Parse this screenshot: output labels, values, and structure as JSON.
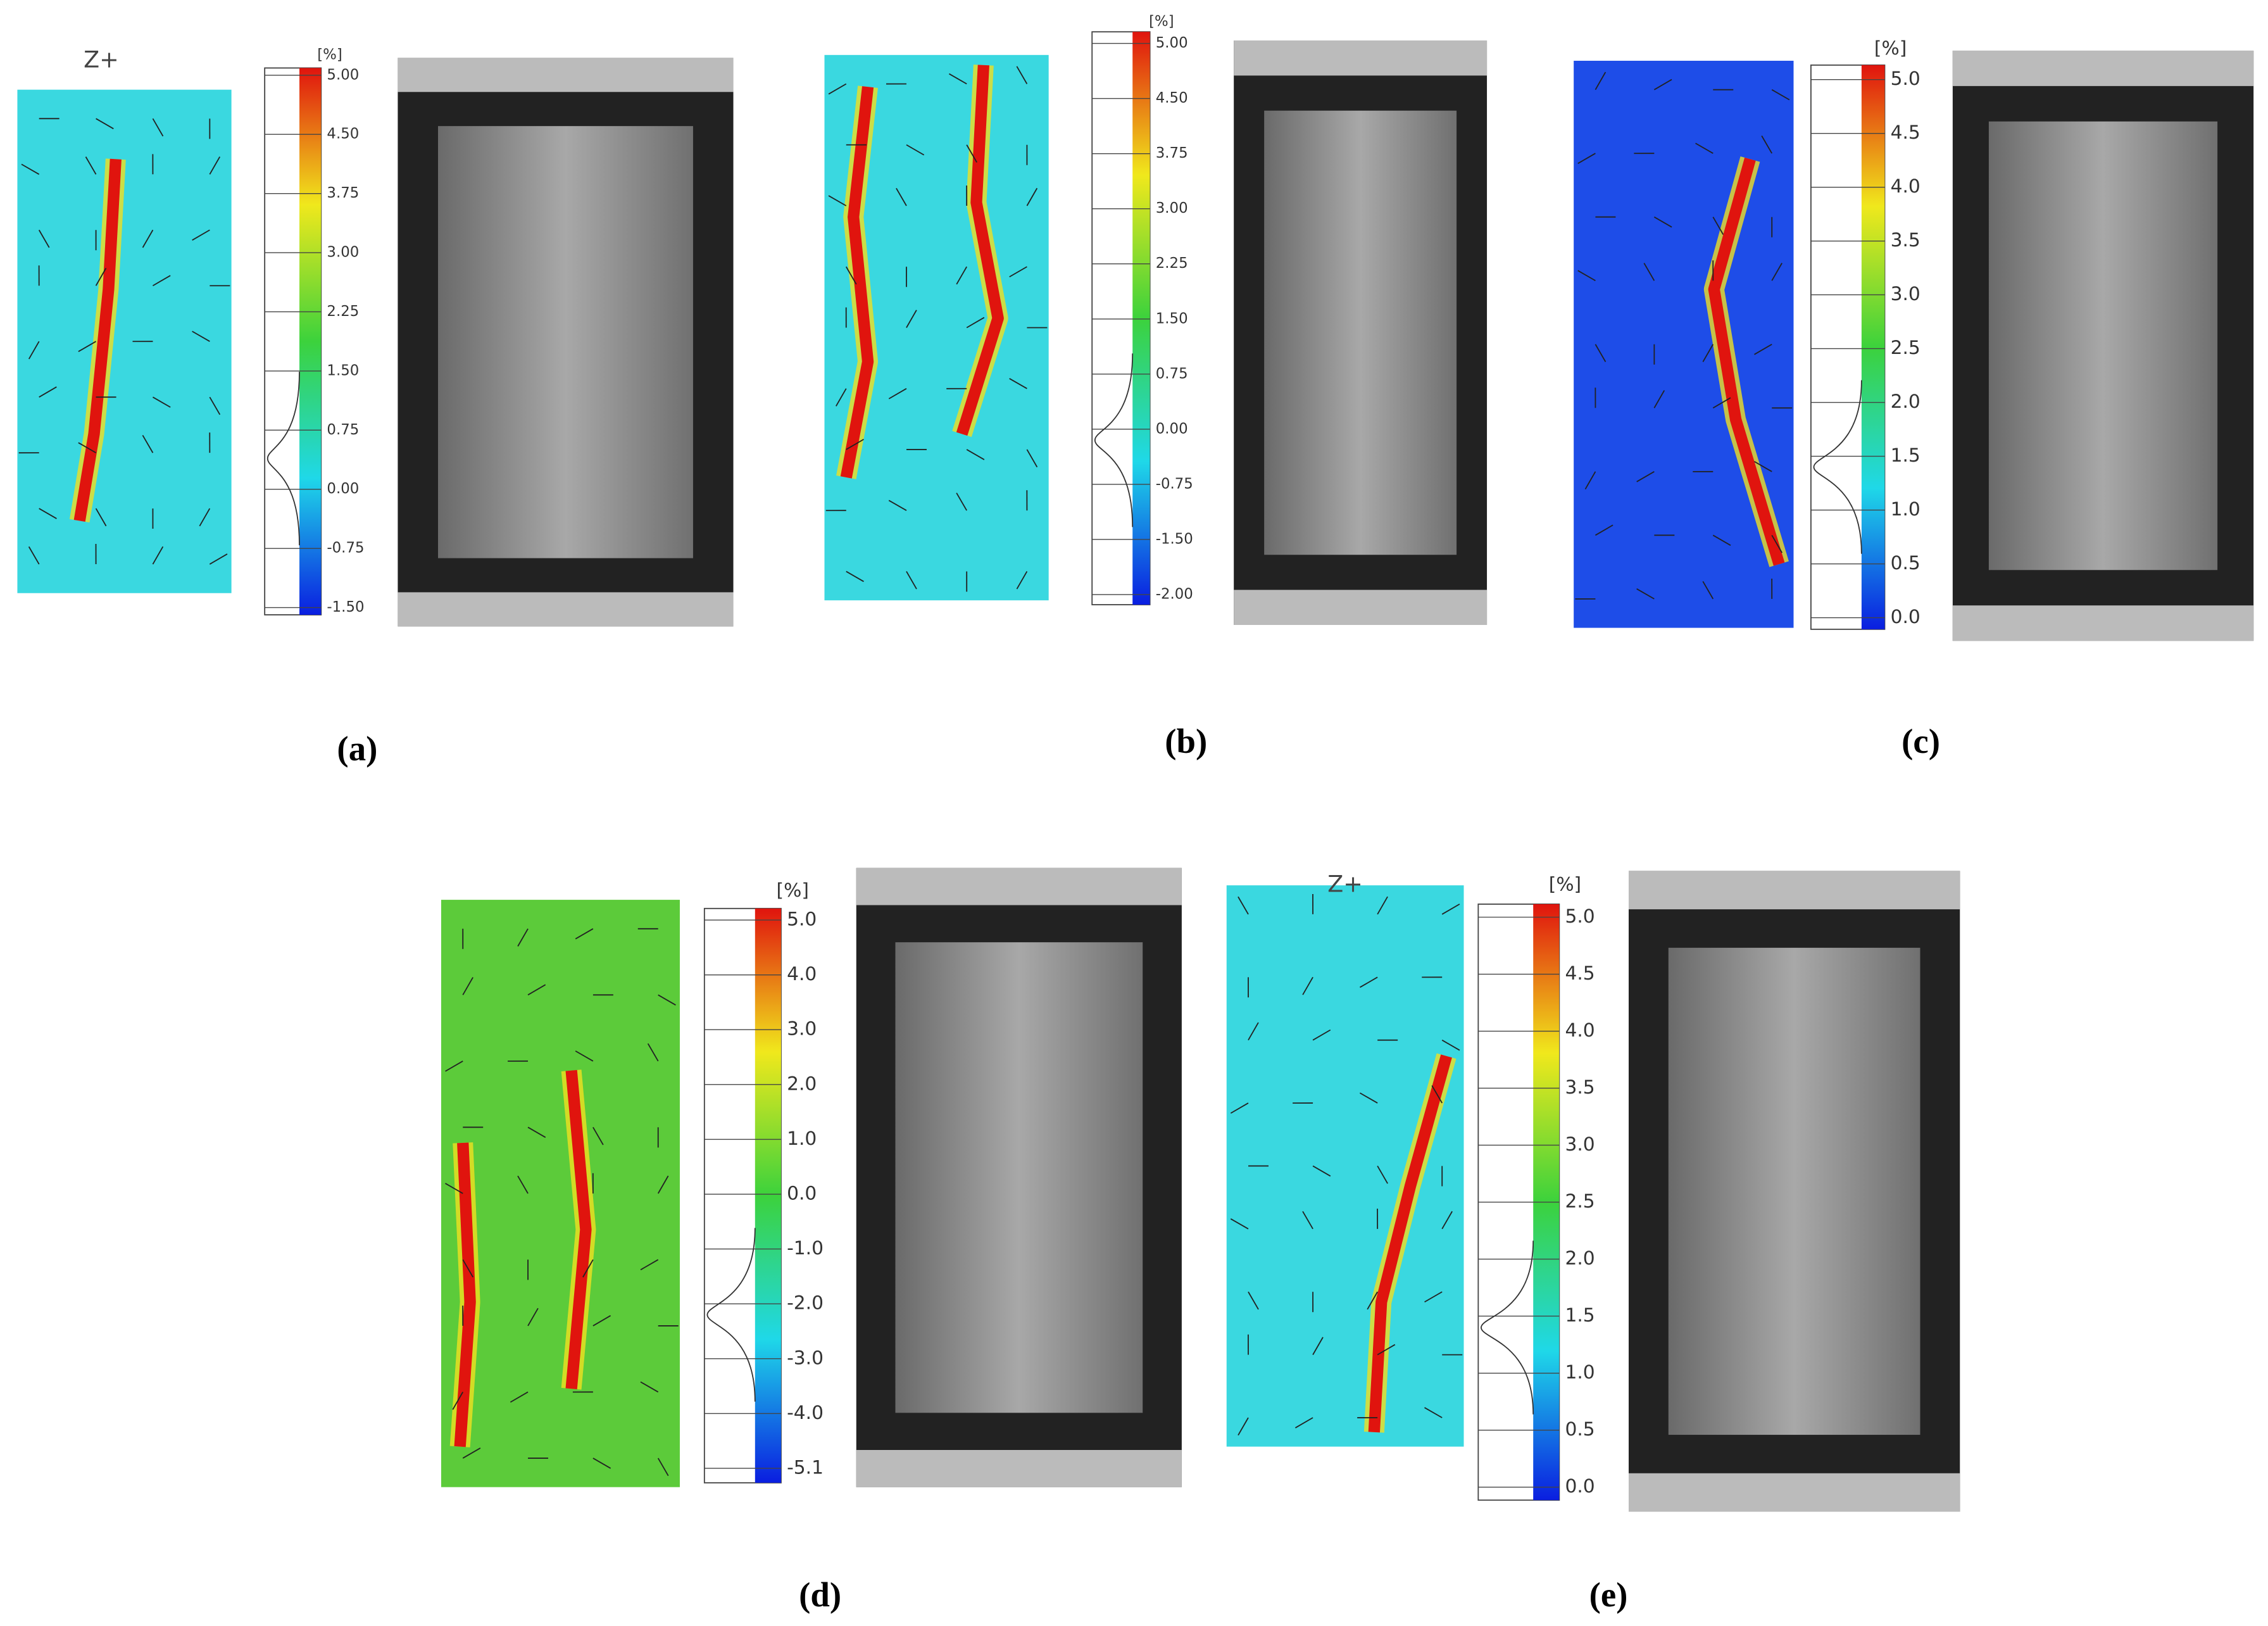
{
  "panels": [
    {
      "label": "(a)",
      "marker": "Z+",
      "unit": "[%]",
      "ticks": [
        "5.00",
        "4.50",
        "3.75",
        "3.00",
        "2.25",
        "1.50",
        "0.75",
        "0.00",
        "-0.75",
        "-1.50"
      ]
    },
    {
      "label": "(b)",
      "unit": "[%]",
      "ticks": [
        "5.00",
        "4.50",
        "3.75",
        "3.00",
        "2.25",
        "1.50",
        "0.75",
        "0.00",
        "-0.75",
        "-1.50",
        "-2.00"
      ]
    },
    {
      "label": "(c)",
      "unit": "[%]",
      "ticks": [
        "5.0",
        "4.5",
        "4.0",
        "3.5",
        "3.0",
        "2.5",
        "2.0",
        "1.5",
        "1.0",
        "0.5",
        "0.0"
      ]
    },
    {
      "label": "(d)",
      "unit": "[%]",
      "ticks": [
        "5.0",
        "4.0",
        "3.0",
        "2.0",
        "1.0",
        "0.0",
        "-1.0",
        "-2.0",
        "-3.0",
        "-4.0",
        "-5.1"
      ]
    },
    {
      "label": "(e)",
      "marker": "Z+",
      "unit": "[%]",
      "ticks": [
        "5.0",
        "4.5",
        "4.0",
        "3.5",
        "3.0",
        "2.5",
        "2.0",
        "1.5",
        "1.0",
        "0.5",
        "0.0"
      ]
    }
  ]
}
